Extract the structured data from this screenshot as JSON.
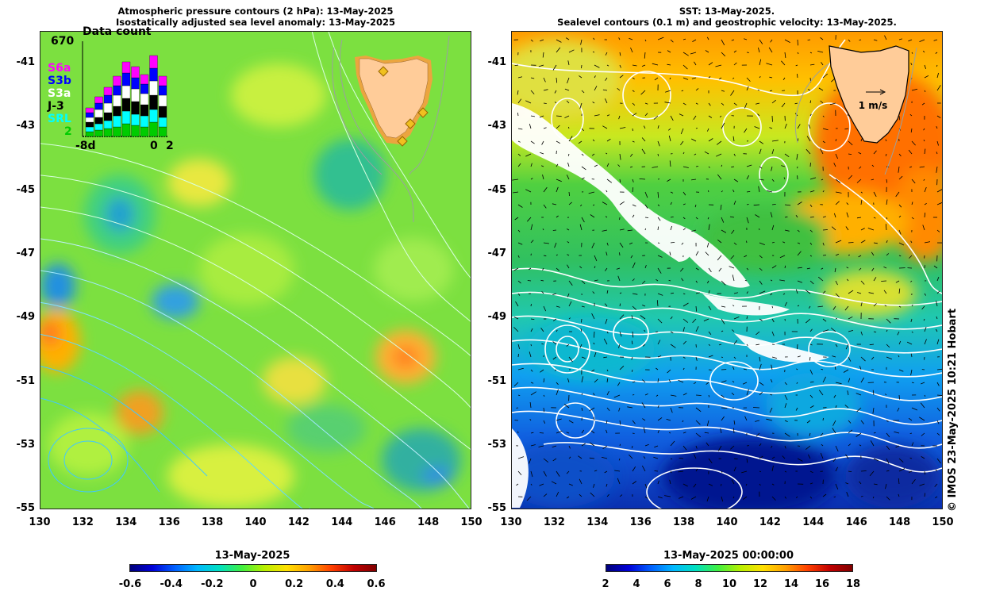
{
  "left": {
    "title_line1": "Atmospheric pressure contours (2 hPa): 13-May-2025",
    "title_line2": "Isostatically adjusted sea level anomaly: 13-May-2025",
    "colorbar_title": "13-May-2025",
    "colorbar_ticks": [
      "-0.6",
      "-0.4",
      "-0.2",
      "0",
      "0.2",
      "0.4",
      "0.6"
    ],
    "inset": {
      "title": "Data count",
      "max": "670",
      "series": [
        "S6a",
        "S3b",
        "S3a",
        "J-3",
        "SRL",
        "2"
      ],
      "series_colors": [
        "#ff00ff",
        "#0000ff",
        "#ffffff",
        "#000000",
        "#00ffff",
        "#00cc00"
      ],
      "xlabel_left": "-8d",
      "xlabel_mid": "0",
      "xlabel_right": "2"
    }
  },
  "right": {
    "title_line1": "SST: 13-May-2025.",
    "title_line2": "Sealevel contours (0.1 m) and geostrophic velocity: 13-May-2025.",
    "colorbar_title": "13-May-2025 00:00:00",
    "colorbar_ticks": [
      "2",
      "4",
      "6",
      "8",
      "10",
      "12",
      "14",
      "16",
      "18"
    ],
    "velocity_scale_label": "1 m/s"
  },
  "axes": {
    "y_ticks": [
      "-41",
      "-43",
      "-45",
      "-47",
      "-49",
      "-51",
      "-53",
      "-55"
    ],
    "x_ticks": [
      "130",
      "132",
      "134",
      "136",
      "138",
      "140",
      "142",
      "144",
      "146",
      "148",
      "150"
    ]
  },
  "credit": "© IMOS 23-May-2025 10:21 Hobart",
  "colors": {
    "land": "#ffcc99",
    "sla_background": "#7ce040",
    "contour_white": "#ffffff",
    "contour_cyan": "#40c8ff"
  }
}
